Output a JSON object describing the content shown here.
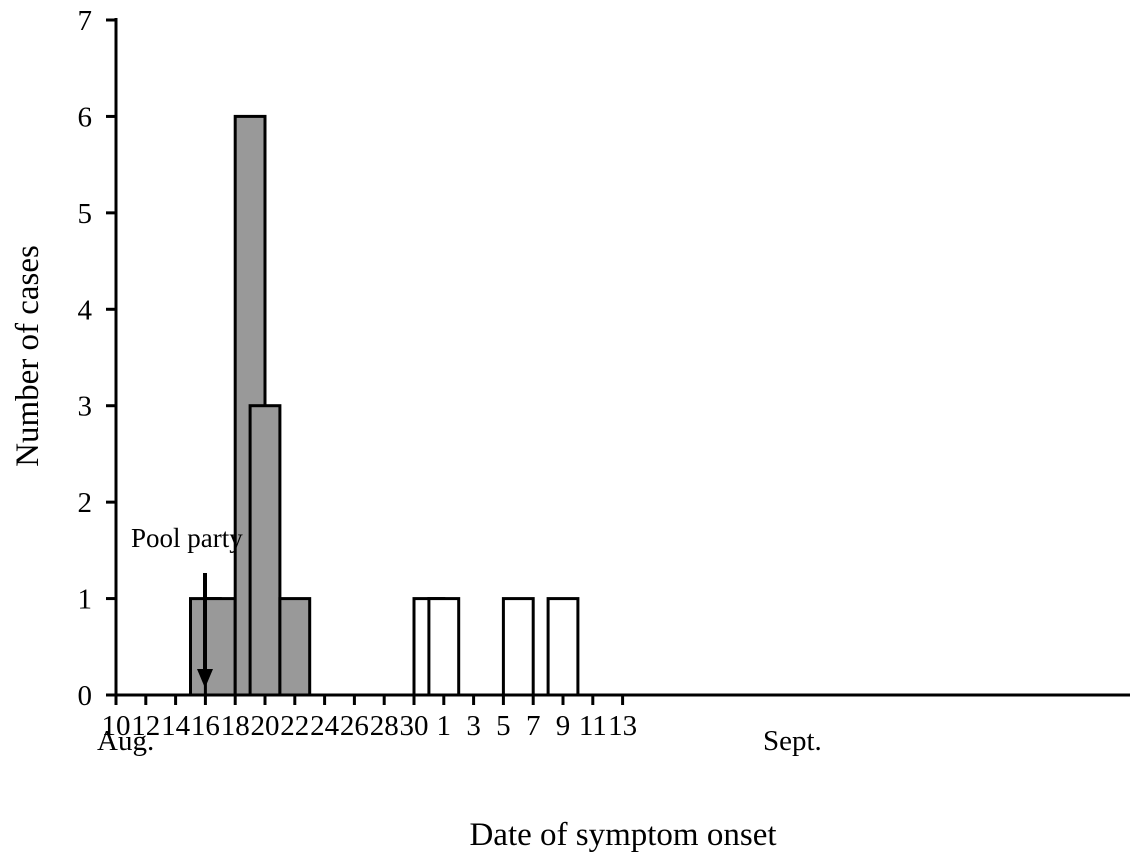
{
  "chart_data": {
    "type": "bar",
    "title": "",
    "xlabel": "Date of symptom onset",
    "ylabel": "Number of cases",
    "ylim": [
      0,
      7
    ],
    "yticks": [
      "0",
      "1",
      "2",
      "3",
      "4",
      "5",
      "6",
      "7"
    ],
    "xticks": [
      "10",
      "12",
      "14",
      "16",
      "18",
      "20",
      "22",
      "24",
      "26",
      "28",
      "30",
      "1",
      "3",
      "5",
      "7",
      "9",
      "11",
      "13"
    ],
    "month_labels": [
      {
        "label": "Aug.",
        "at_tick": "10"
      },
      {
        "label": "Sept.",
        "at_tick": "1"
      }
    ],
    "x_start_date": "Aug 10",
    "series": [
      {
        "key": "filled",
        "color": "#999999",
        "points": [
          {
            "date": "Aug 16",
            "value": 1
          },
          {
            "date": "Aug 17",
            "value": 1
          },
          {
            "date": "Aug 19",
            "value": 6
          },
          {
            "date": "Aug 20",
            "value": 3
          },
          {
            "date": "Aug 22",
            "value": 1
          }
        ]
      },
      {
        "key": "open",
        "color": "#ffffff",
        "points": [
          {
            "date": "Aug 31",
            "value": 1
          },
          {
            "date": "Sep 1",
            "value": 1
          },
          {
            "date": "Sep 6",
            "value": 1
          },
          {
            "date": "Sep 9",
            "value": 1
          }
        ]
      }
    ],
    "annotations": [
      {
        "text": "Pool party",
        "date": "Aug 13",
        "marker": "arrow-down"
      }
    ]
  }
}
